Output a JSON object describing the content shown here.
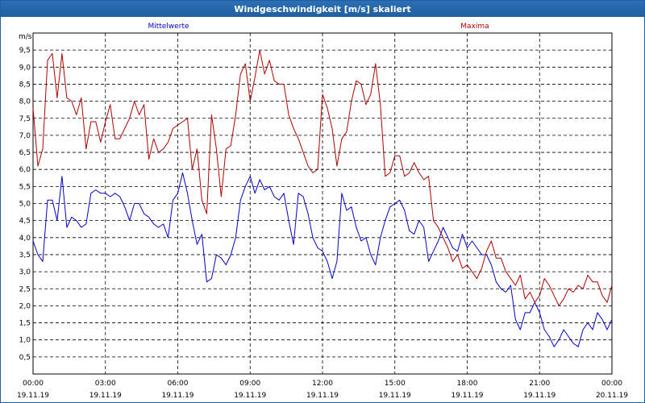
{
  "window": {
    "title": "Windgeschwindigkeit [m/s] skaliert"
  },
  "colors": {
    "mittelwerte": "#0000cc",
    "maxima": "#b00000",
    "titlebar": "#1f5ea0"
  },
  "chart_data": {
    "type": "line",
    "title": "Windgeschwindigkeit [m/s] skaliert",
    "ylabel": "m/s",
    "ylim": [
      0,
      10
    ],
    "yticks": [
      "0,5",
      "1,0",
      "1,5",
      "2,0",
      "2,5",
      "3,0",
      "3,5",
      "4,0",
      "4,5",
      "5,0",
      "5,5",
      "6,0",
      "6,5",
      "7,0",
      "7,5",
      "8,0",
      "8,5",
      "9,0",
      "9,5"
    ],
    "xlim": [
      0,
      24
    ],
    "xticks": [
      {
        "time": "00:00",
        "date": "19.11.19"
      },
      {
        "time": "03:00",
        "date": "19.11.19"
      },
      {
        "time": "06:00",
        "date": "19.11.19"
      },
      {
        "time": "09:00",
        "date": "19.11.19"
      },
      {
        "time": "12:00",
        "date": "19.11.19"
      },
      {
        "time": "15:00",
        "date": "19.11.19"
      },
      {
        "time": "18:00",
        "date": "19.11.19"
      },
      {
        "time": "21:00",
        "date": "19.11.19"
      },
      {
        "time": "00:00",
        "date": "20.11.19"
      }
    ],
    "grid": true,
    "series": [
      {
        "name": "Mittelwerte",
        "color": "#0000cc",
        "legend_position": "top-left",
        "points": [
          [
            0.0,
            3.9
          ],
          [
            0.2,
            3.5
          ],
          [
            0.4,
            3.3
          ],
          [
            0.6,
            5.1
          ],
          [
            0.8,
            5.1
          ],
          [
            1.0,
            4.5
          ],
          [
            1.2,
            5.8
          ],
          [
            1.4,
            4.3
          ],
          [
            1.6,
            4.6
          ],
          [
            1.8,
            4.5
          ],
          [
            2.0,
            4.3
          ],
          [
            2.2,
            4.4
          ],
          [
            2.4,
            5.3
          ],
          [
            2.6,
            5.4
          ],
          [
            2.8,
            5.3
          ],
          [
            3.0,
            5.3
          ],
          [
            3.2,
            5.2
          ],
          [
            3.4,
            5.3
          ],
          [
            3.6,
            5.2
          ],
          [
            3.8,
            4.9
          ],
          [
            4.0,
            4.5
          ],
          [
            4.2,
            5.0
          ],
          [
            4.4,
            5.0
          ],
          [
            4.6,
            4.7
          ],
          [
            4.8,
            4.6
          ],
          [
            5.0,
            4.4
          ],
          [
            5.2,
            4.3
          ],
          [
            5.4,
            4.4
          ],
          [
            5.6,
            4.0
          ],
          [
            5.8,
            5.1
          ],
          [
            6.0,
            5.3
          ],
          [
            6.2,
            5.9
          ],
          [
            6.4,
            5.3
          ],
          [
            6.6,
            4.5
          ],
          [
            6.8,
            3.8
          ],
          [
            7.0,
            4.1
          ],
          [
            7.2,
            2.7
          ],
          [
            7.4,
            2.8
          ],
          [
            7.6,
            3.5
          ],
          [
            7.8,
            3.4
          ],
          [
            8.0,
            3.2
          ],
          [
            8.2,
            3.5
          ],
          [
            8.4,
            4.0
          ],
          [
            8.6,
            5.1
          ],
          [
            8.8,
            5.5
          ],
          [
            9.0,
            5.8
          ],
          [
            9.2,
            5.3
          ],
          [
            9.4,
            5.7
          ],
          [
            9.6,
            5.4
          ],
          [
            9.8,
            5.5
          ],
          [
            10.0,
            5.2
          ],
          [
            10.2,
            5.1
          ],
          [
            10.4,
            5.3
          ],
          [
            10.6,
            4.5
          ],
          [
            10.8,
            3.8
          ],
          [
            11.0,
            5.3
          ],
          [
            11.2,
            5.2
          ],
          [
            11.4,
            4.7
          ],
          [
            11.6,
            4.0
          ],
          [
            11.8,
            3.7
          ],
          [
            12.0,
            3.6
          ],
          [
            12.2,
            3.3
          ],
          [
            12.4,
            2.8
          ],
          [
            12.6,
            3.3
          ],
          [
            12.8,
            5.3
          ],
          [
            13.0,
            4.8
          ],
          [
            13.2,
            4.9
          ],
          [
            13.4,
            4.3
          ],
          [
            13.6,
            3.9
          ],
          [
            13.8,
            4.0
          ],
          [
            14.0,
            3.5
          ],
          [
            14.2,
            3.2
          ],
          [
            14.4,
            4.0
          ],
          [
            14.6,
            4.5
          ],
          [
            14.8,
            4.9
          ],
          [
            15.0,
            5.0
          ],
          [
            15.2,
            5.1
          ],
          [
            15.4,
            4.8
          ],
          [
            15.6,
            4.2
          ],
          [
            15.8,
            4.1
          ],
          [
            16.0,
            4.5
          ],
          [
            16.2,
            4.3
          ],
          [
            16.4,
            3.3
          ],
          [
            16.6,
            3.6
          ],
          [
            16.8,
            3.9
          ],
          [
            17.0,
            4.3
          ],
          [
            17.2,
            4.0
          ],
          [
            17.4,
            3.7
          ],
          [
            17.6,
            3.6
          ],
          [
            17.8,
            4.1
          ],
          [
            18.0,
            3.7
          ],
          [
            18.2,
            3.9
          ],
          [
            18.4,
            3.7
          ],
          [
            18.6,
            3.5
          ],
          [
            18.8,
            3.5
          ],
          [
            19.0,
            3.2
          ],
          [
            19.2,
            2.7
          ],
          [
            19.4,
            2.5
          ],
          [
            19.6,
            2.4
          ],
          [
            19.8,
            2.6
          ],
          [
            20.0,
            1.6
          ],
          [
            20.2,
            1.3
          ],
          [
            20.4,
            1.8
          ],
          [
            20.6,
            1.8
          ],
          [
            20.8,
            2.1
          ],
          [
            21.0,
            1.8
          ],
          [
            21.2,
            1.3
          ],
          [
            21.4,
            1.1
          ],
          [
            21.6,
            0.8
          ],
          [
            21.8,
            1.0
          ],
          [
            22.0,
            1.3
          ],
          [
            22.2,
            1.1
          ],
          [
            22.4,
            0.9
          ],
          [
            22.6,
            0.8
          ],
          [
            22.8,
            1.3
          ],
          [
            23.0,
            1.5
          ],
          [
            23.2,
            1.3
          ],
          [
            23.4,
            1.8
          ],
          [
            23.6,
            1.6
          ],
          [
            23.8,
            1.3
          ],
          [
            24.0,
            1.6
          ]
        ]
      },
      {
        "name": "Maxima",
        "color": "#b00000",
        "legend_position": "top-right",
        "points": [
          [
            0.0,
            7.8
          ],
          [
            0.2,
            6.1
          ],
          [
            0.4,
            6.6
          ],
          [
            0.6,
            9.2
          ],
          [
            0.8,
            9.4
          ],
          [
            1.0,
            8.1
          ],
          [
            1.2,
            9.4
          ],
          [
            1.4,
            8.1
          ],
          [
            1.6,
            8.0
          ],
          [
            1.8,
            7.6
          ],
          [
            2.0,
            8.1
          ],
          [
            2.2,
            6.6
          ],
          [
            2.4,
            7.4
          ],
          [
            2.6,
            7.4
          ],
          [
            2.8,
            6.8
          ],
          [
            3.0,
            7.4
          ],
          [
            3.2,
            7.9
          ],
          [
            3.4,
            6.9
          ],
          [
            3.6,
            6.9
          ],
          [
            3.8,
            7.2
          ],
          [
            4.0,
            7.5
          ],
          [
            4.2,
            8.0
          ],
          [
            4.4,
            7.6
          ],
          [
            4.6,
            7.9
          ],
          [
            4.8,
            6.3
          ],
          [
            5.0,
            6.9
          ],
          [
            5.2,
            6.5
          ],
          [
            5.4,
            6.6
          ],
          [
            5.6,
            6.8
          ],
          [
            5.8,
            7.2
          ],
          [
            6.0,
            7.3
          ],
          [
            6.2,
            7.4
          ],
          [
            6.4,
            7.5
          ],
          [
            6.6,
            6.0
          ],
          [
            6.8,
            6.6
          ],
          [
            7.0,
            5.1
          ],
          [
            7.2,
            4.7
          ],
          [
            7.4,
            7.6
          ],
          [
            7.6,
            6.6
          ],
          [
            7.8,
            5.2
          ],
          [
            8.0,
            6.6
          ],
          [
            8.2,
            6.7
          ],
          [
            8.4,
            7.6
          ],
          [
            8.6,
            8.8
          ],
          [
            8.8,
            9.1
          ],
          [
            9.0,
            8.0
          ],
          [
            9.2,
            8.7
          ],
          [
            9.4,
            9.5
          ],
          [
            9.6,
            8.8
          ],
          [
            9.8,
            9.2
          ],
          [
            10.0,
            8.6
          ],
          [
            10.2,
            8.5
          ],
          [
            10.4,
            8.5
          ],
          [
            10.6,
            7.6
          ],
          [
            10.8,
            7.2
          ],
          [
            11.0,
            6.9
          ],
          [
            11.2,
            6.5
          ],
          [
            11.4,
            6.1
          ],
          [
            11.6,
            5.9
          ],
          [
            11.8,
            6.0
          ],
          [
            12.0,
            8.2
          ],
          [
            12.2,
            7.8
          ],
          [
            12.4,
            7.2
          ],
          [
            12.6,
            6.1
          ],
          [
            12.8,
            6.9
          ],
          [
            13.0,
            7.1
          ],
          [
            13.2,
            8.0
          ],
          [
            13.4,
            8.6
          ],
          [
            13.6,
            8.5
          ],
          [
            13.8,
            7.9
          ],
          [
            14.0,
            8.2
          ],
          [
            14.2,
            9.1
          ],
          [
            14.4,
            7.9
          ],
          [
            14.6,
            5.8
          ],
          [
            14.8,
            5.9
          ],
          [
            15.0,
            6.4
          ],
          [
            15.2,
            6.4
          ],
          [
            15.4,
            5.8
          ],
          [
            15.6,
            5.9
          ],
          [
            15.8,
            6.2
          ],
          [
            16.0,
            5.9
          ],
          [
            16.2,
            5.7
          ],
          [
            16.4,
            5.8
          ],
          [
            16.6,
            4.5
          ],
          [
            16.8,
            4.3
          ],
          [
            17.0,
            4.0
          ],
          [
            17.2,
            3.7
          ],
          [
            17.4,
            3.3
          ],
          [
            17.6,
            3.5
          ],
          [
            17.8,
            3.1
          ],
          [
            18.0,
            3.2
          ],
          [
            18.2,
            3.0
          ],
          [
            18.4,
            2.8
          ],
          [
            18.6,
            3.1
          ],
          [
            18.8,
            3.6
          ],
          [
            19.0,
            3.9
          ],
          [
            19.2,
            3.4
          ],
          [
            19.4,
            3.4
          ],
          [
            19.6,
            3.0
          ],
          [
            19.8,
            2.8
          ],
          [
            20.0,
            2.6
          ],
          [
            20.2,
            2.9
          ],
          [
            20.4,
            2.2
          ],
          [
            20.6,
            2.4
          ],
          [
            20.8,
            2.1
          ],
          [
            21.0,
            2.3
          ],
          [
            21.2,
            2.8
          ],
          [
            21.4,
            2.6
          ],
          [
            21.6,
            2.3
          ],
          [
            21.8,
            2.0
          ],
          [
            22.0,
            2.2
          ],
          [
            22.2,
            2.5
          ],
          [
            22.4,
            2.4
          ],
          [
            22.6,
            2.6
          ],
          [
            22.8,
            2.5
          ],
          [
            23.0,
            2.9
          ],
          [
            23.2,
            2.7
          ],
          [
            23.4,
            2.7
          ],
          [
            23.6,
            2.3
          ],
          [
            23.8,
            2.1
          ],
          [
            24.0,
            2.6
          ]
        ]
      }
    ]
  }
}
